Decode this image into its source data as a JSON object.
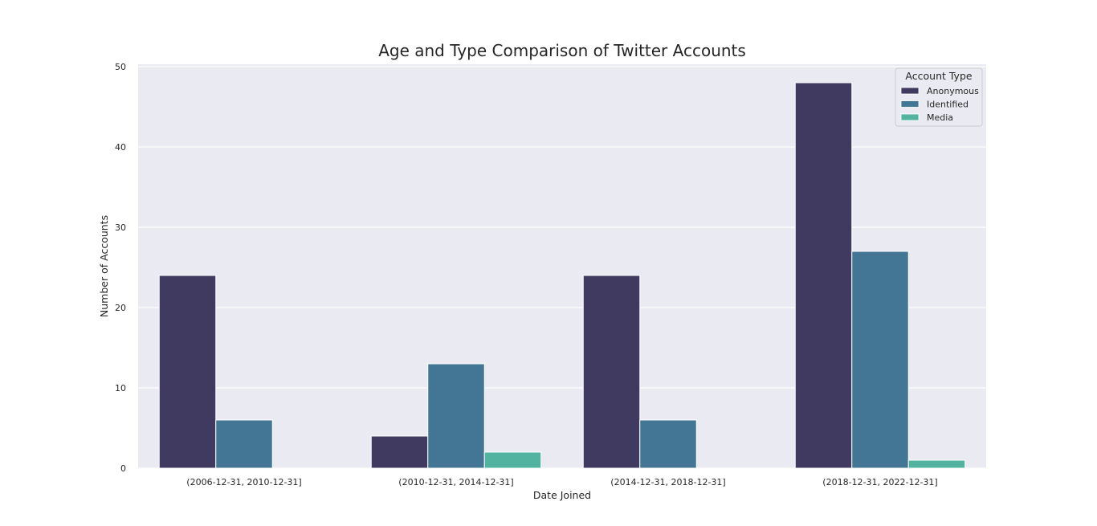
{
  "chart_data": {
    "type": "bar",
    "title": "Age and Type Comparison of Twitter Accounts",
    "xlabel": "Date Joined",
    "ylabel": "Number of Accounts",
    "ylim": [
      0,
      50
    ],
    "yticks": [
      0,
      10,
      20,
      30,
      40,
      50
    ],
    "grid": true,
    "categories": [
      "(2006-12-31, 2010-12-31]",
      "(2010-12-31, 2014-12-31]",
      "(2014-12-31, 2018-12-31]",
      "(2018-12-31, 2022-12-31]"
    ],
    "series": [
      {
        "name": "Anonymous",
        "color": "#413a60",
        "values": [
          24,
          4,
          24,
          48
        ]
      },
      {
        "name": "Identified",
        "color": "#437694",
        "values": [
          6,
          13,
          6,
          27
        ]
      },
      {
        "name": "Media",
        "color": "#52b3a0",
        "values": [
          0,
          2,
          0,
          1
        ]
      }
    ],
    "legend": {
      "title": "Account Type",
      "placement": "top-right"
    }
  }
}
